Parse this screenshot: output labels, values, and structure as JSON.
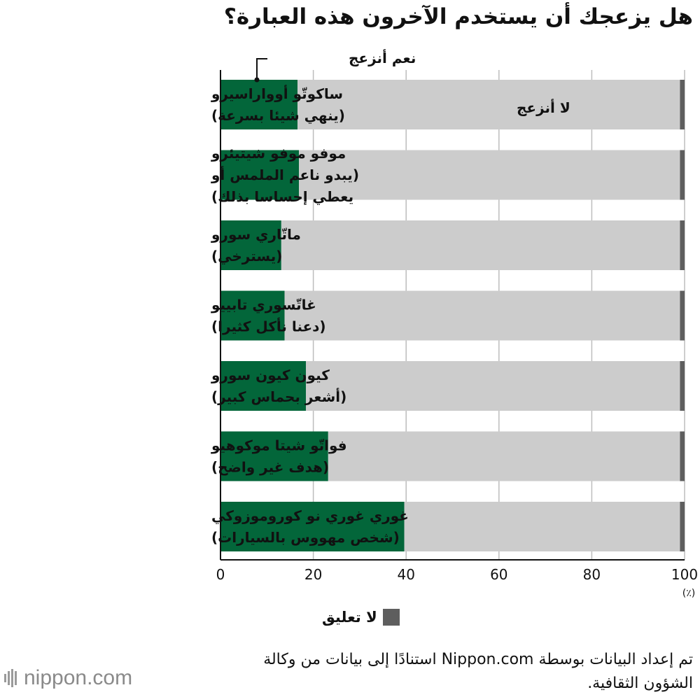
{
  "title": "هل يزعجك أن يستخدم الآخرون هذه العبارة؟",
  "chart_data": {
    "type": "bar",
    "orientation": "horizontal",
    "stacked": true,
    "categories": [
      [
        "ساكوتّو أوواراسيرو",
        "(ينهي شيئا بسرعة)"
      ],
      [
        "موفو موفو شيتيئرو",
        "(يبدو ناعم الملمس أو",
        "يعطي إحساسا بذلك)"
      ],
      [
        "ماتّاري سورو",
        "(يسترخي)"
      ],
      [
        "غاتّسوري تابييو",
        "(دعنا نأكل كثيرا)"
      ],
      [
        "كيون كيون سورو",
        "(أشعر بحماس كبير)"
      ],
      [
        "فواتّو شيتا موكوهيو",
        "(هدف غير واضح)"
      ],
      [
        "غوري غوري نو كوروموزوكي",
        "(شخص مهووس بالسيارات)"
      ]
    ],
    "series": [
      {
        "name": "نعم أنزعج",
        "color": "#03663a",
        "values": [
          16.6,
          16.9,
          13.1,
          13.8,
          18.4,
          23.2,
          39.6
        ]
      },
      {
        "name": "لا أنزعج",
        "color": "#cccccc",
        "values": [
          82.4,
          82.1,
          85.9,
          85.2,
          80.6,
          75.8,
          59.4
        ]
      },
      {
        "name": "لا تعليق",
        "color": "#5e5e5e",
        "values": [
          1.0,
          1.0,
          1.0,
          1.0,
          1.0,
          1.0,
          1.0
        ]
      }
    ],
    "xlim": [
      0,
      100
    ],
    "xticks": [
      0,
      20,
      40,
      60,
      80,
      100
    ],
    "xunit": "(٪)",
    "grid": true,
    "annotations": {
      "yes": "نعم أنزعج",
      "no": "لا أنزعج"
    },
    "legend": {
      "placement": "bottom",
      "label": "لا تعليق",
      "color": "#5e5e5e"
    }
  },
  "source": "تم إعداد البيانات بوسطة Nippon.com استنادًا إلى بيانات من وكالة الشؤون الثقافية.",
  "logo": {
    "text": "nippon.com",
    "icon": "nippon-logo-icon"
  }
}
